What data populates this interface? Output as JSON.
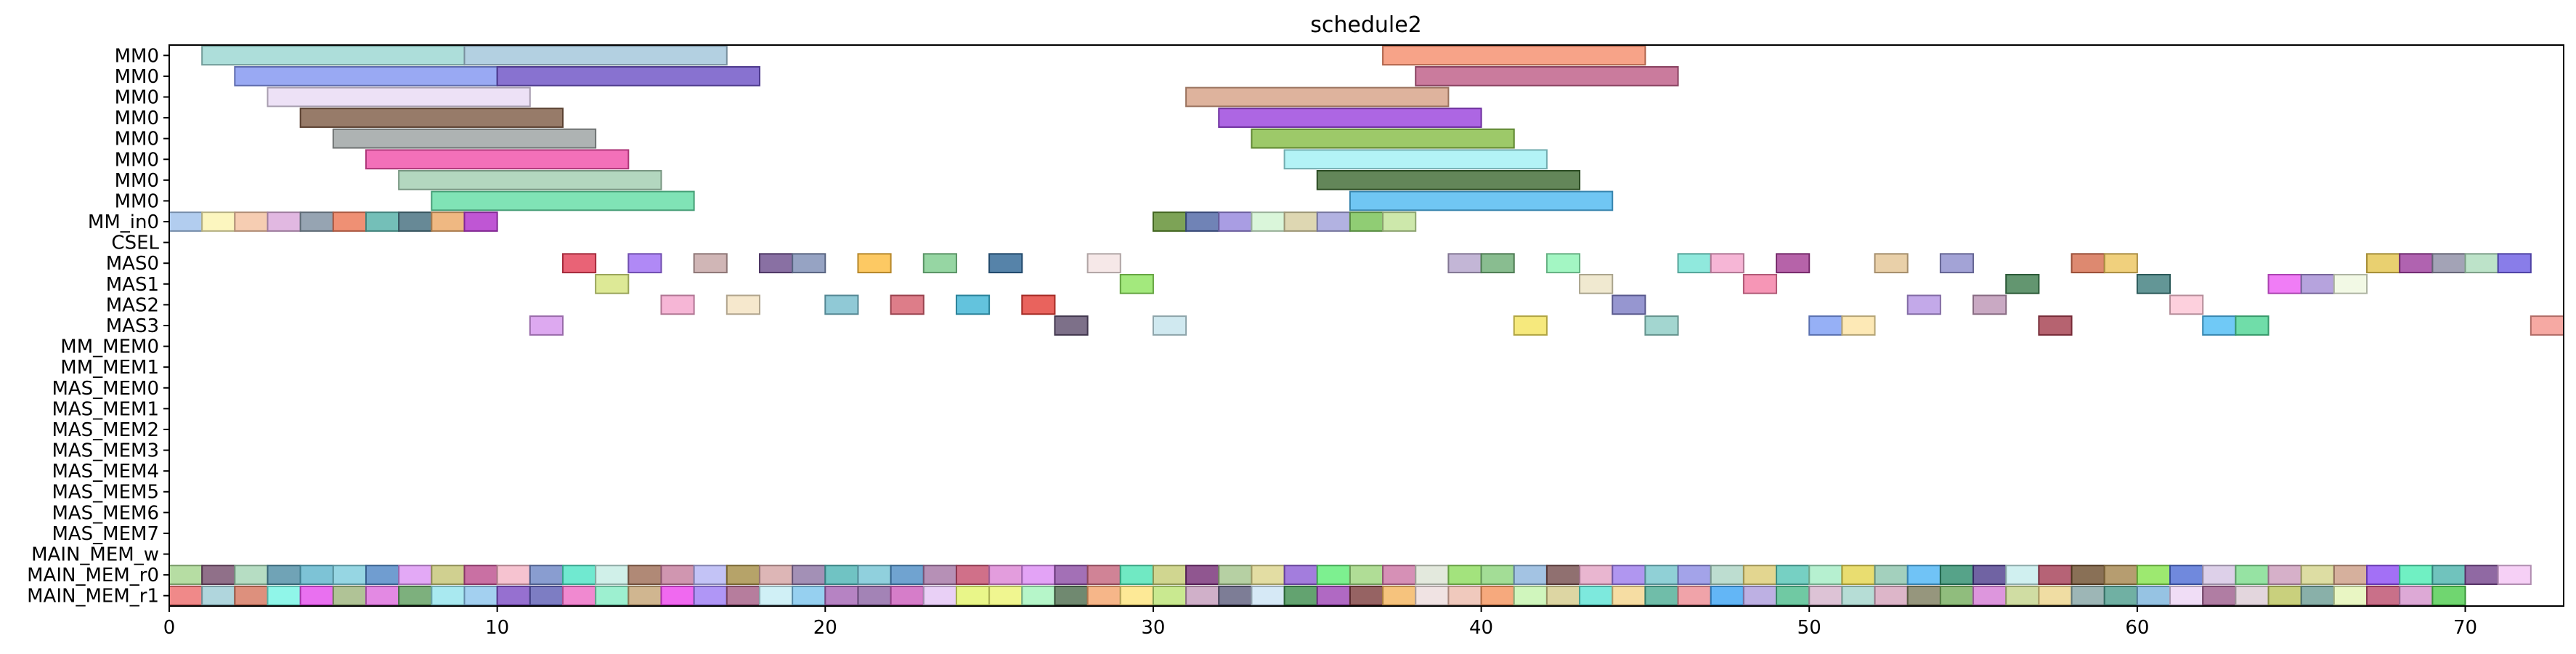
{
  "chart_data": {
    "type": "gantt",
    "title": "schedule2",
    "xlabel": "",
    "ylabel": "",
    "xlim": [
      0,
      73
    ],
    "x_ticks": [
      0,
      10,
      20,
      30,
      40,
      50,
      60,
      70
    ],
    "grid": false,
    "legend": "none",
    "rows": [
      "MM0",
      "MM0",
      "MM0",
      "MM0",
      "MM0",
      "MM0",
      "MM0",
      "MM0",
      "MM_in0",
      "CSEL",
      "MAS0",
      "MAS1",
      "MAS2",
      "MAS3",
      "MM_MEM0",
      "MM_MEM1",
      "MAS_MEM0",
      "MAS_MEM1",
      "MAS_MEM2",
      "MAS_MEM3",
      "MAS_MEM4",
      "MAS_MEM5",
      "MAS_MEM6",
      "MAS_MEM7",
      "MAIN_MEM_w",
      "MAIN_MEM_r0",
      "MAIN_MEM_r1"
    ],
    "tasks": [
      {
        "row": 0,
        "start": 1,
        "end": 9,
        "color": "#9fd8d4",
        "alpha": 0.85
      },
      {
        "row": 0,
        "start": 9,
        "end": 17,
        "color": "#a6c8dc",
        "alpha": 0.85
      },
      {
        "row": 0,
        "start": 37,
        "end": 45,
        "color": "#f58c6a",
        "alpha": 0.8
      },
      {
        "row": 1,
        "start": 2,
        "end": 10,
        "color": "#8093f0",
        "alpha": 0.8
      },
      {
        "row": 1,
        "start": 10,
        "end": 18,
        "color": "#6a4fc4",
        "alpha": 0.8
      },
      {
        "row": 1,
        "start": 38,
        "end": 46,
        "color": "#bd5a84",
        "alpha": 0.8
      },
      {
        "row": 2,
        "start": 3,
        "end": 11,
        "color": "#eadcf4",
        "alpha": 0.85
      },
      {
        "row": 2,
        "start": 31,
        "end": 39,
        "color": "#d6a084",
        "alpha": 0.8
      },
      {
        "row": 3,
        "start": 4,
        "end": 12,
        "color": "#7d5a44",
        "alpha": 0.8
      },
      {
        "row": 3,
        "start": 32,
        "end": 40,
        "color": "#9840dc",
        "alpha": 0.8
      },
      {
        "row": 4,
        "start": 5,
        "end": 13,
        "color": "#9aa0a0",
        "alpha": 0.8
      },
      {
        "row": 4,
        "start": 33,
        "end": 41,
        "color": "#84bc44",
        "alpha": 0.8
      },
      {
        "row": 5,
        "start": 6,
        "end": 14,
        "color": "#f04ca8",
        "alpha": 0.8
      },
      {
        "row": 5,
        "start": 34,
        "end": 42,
        "color": "#a0f0f4",
        "alpha": 0.8
      },
      {
        "row": 6,
        "start": 7,
        "end": 15,
        "color": "#a6d0b4",
        "alpha": 0.85
      },
      {
        "row": 6,
        "start": 35,
        "end": 43,
        "color": "#3c6830",
        "alpha": 0.8
      },
      {
        "row": 7,
        "start": 8,
        "end": 16,
        "color": "#60dca4",
        "alpha": 0.8
      },
      {
        "row": 7,
        "start": 36,
        "end": 44,
        "color": "#4cb8f0",
        "alpha": 0.8
      },
      {
        "row": 8,
        "start": 0,
        "end": 1,
        "color": "#a4c4ec",
        "alpha": 0.85
      },
      {
        "row": 8,
        "start": 1,
        "end": 2,
        "color": "#fcf4b4",
        "alpha": 0.85
      },
      {
        "row": 8,
        "start": 2,
        "end": 3,
        "color": "#f4c4a4",
        "alpha": 0.85
      },
      {
        "row": 8,
        "start": 3,
        "end": 4,
        "color": "#dcacdc",
        "alpha": 0.85
      },
      {
        "row": 8,
        "start": 4,
        "end": 5,
        "color": "#8494a4",
        "alpha": 0.85
      },
      {
        "row": 8,
        "start": 5,
        "end": 6,
        "color": "#ec7c5c",
        "alpha": 0.85
      },
      {
        "row": 8,
        "start": 6,
        "end": 7,
        "color": "#5cb4ac",
        "alpha": 0.85
      },
      {
        "row": 8,
        "start": 7,
        "end": 8,
        "color": "#4c7484",
        "alpha": 0.85
      },
      {
        "row": 8,
        "start": 8,
        "end": 9,
        "color": "#ecac6c",
        "alpha": 0.85
      },
      {
        "row": 8,
        "start": 9,
        "end": 10,
        "color": "#b438cc",
        "alpha": 0.85
      },
      {
        "row": 8,
        "start": 30,
        "end": 31,
        "color": "#5c8c2c",
        "alpha": 0.8
      },
      {
        "row": 8,
        "start": 31,
        "end": 32,
        "color": "#4c64a4",
        "alpha": 0.8
      },
      {
        "row": 8,
        "start": 32,
        "end": 33,
        "color": "#9484dc",
        "alpha": 0.8
      },
      {
        "row": 8,
        "start": 33,
        "end": 34,
        "color": "#d4f4d4",
        "alpha": 0.85
      },
      {
        "row": 8,
        "start": 34,
        "end": 35,
        "color": "#d8d0a4",
        "alpha": 0.85
      },
      {
        "row": 8,
        "start": 35,
        "end": 36,
        "color": "#a4a4dc",
        "alpha": 0.85
      },
      {
        "row": 8,
        "start": 36,
        "end": 37,
        "color": "#7cc45c",
        "alpha": 0.85
      },
      {
        "row": 8,
        "start": 37,
        "end": 38,
        "color": "#c4e49c",
        "alpha": 0.85
      },
      {
        "row": 10,
        "start": 12,
        "end": 13,
        "color": "#e43c54",
        "alpha": 0.8
      },
      {
        "row": 10,
        "start": 14,
        "end": 15,
        "color": "#9c6cf4",
        "alpha": 0.8
      },
      {
        "row": 10,
        "start": 16,
        "end": 17,
        "color": "#c4a4a4",
        "alpha": 0.8
      },
      {
        "row": 10,
        "start": 18,
        "end": 19,
        "color": "#6c4c8c",
        "alpha": 0.8
      },
      {
        "row": 10,
        "start": 19,
        "end": 20,
        "color": "#7c8cb4",
        "alpha": 0.8
      },
      {
        "row": 10,
        "start": 21,
        "end": 22,
        "color": "#fcbc3c",
        "alpha": 0.8
      },
      {
        "row": 10,
        "start": 23,
        "end": 24,
        "color": "#7ccc8c",
        "alpha": 0.8
      },
      {
        "row": 10,
        "start": 25,
        "end": 26,
        "color": "#2c6494",
        "alpha": 0.8
      },
      {
        "row": 10,
        "start": 28,
        "end": 29,
        "color": "#f4e4e4",
        "alpha": 0.85
      },
      {
        "row": 10,
        "start": 39,
        "end": 40,
        "color": "#b4a4cc",
        "alpha": 0.8
      },
      {
        "row": 10,
        "start": 40,
        "end": 41,
        "color": "#6cac74",
        "alpha": 0.8
      },
      {
        "row": 10,
        "start": 42,
        "end": 43,
        "color": "#8cf4b4",
        "alpha": 0.8
      },
      {
        "row": 10,
        "start": 46,
        "end": 47,
        "color": "#74e4d4",
        "alpha": 0.8
      },
      {
        "row": 10,
        "start": 47,
        "end": 48,
        "color": "#f4a4cc",
        "alpha": 0.8
      },
      {
        "row": 10,
        "start": 49,
        "end": 50,
        "color": "#a43c94",
        "alpha": 0.8
      },
      {
        "row": 10,
        "start": 52,
        "end": 53,
        "color": "#e4c494",
        "alpha": 0.8
      },
      {
        "row": 10,
        "start": 54,
        "end": 55,
        "color": "#8c8ccc",
        "alpha": 0.8
      },
      {
        "row": 10,
        "start": 58,
        "end": 59,
        "color": "#d46c4c",
        "alpha": 0.8
      },
      {
        "row": 10,
        "start": 59,
        "end": 60,
        "color": "#ecc45c",
        "alpha": 0.8
      },
      {
        "row": 10,
        "start": 67,
        "end": 68,
        "color": "#e4c44c",
        "alpha": 0.8
      },
      {
        "row": 10,
        "start": 68,
        "end": 69,
        "color": "#9c3c9c",
        "alpha": 0.8
      },
      {
        "row": 10,
        "start": 69,
        "end": 70,
        "color": "#8c8ca4",
        "alpha": 0.8
      },
      {
        "row": 10,
        "start": 70,
        "end": 71,
        "color": "#acdcbc",
        "alpha": 0.8
      },
      {
        "row": 10,
        "start": 71,
        "end": 72,
        "color": "#6c5ce4",
        "alpha": 0.8
      },
      {
        "row": 11,
        "start": 13,
        "end": 14,
        "color": "#d4e47c",
        "alpha": 0.8
      },
      {
        "row": 11,
        "start": 29,
        "end": 30,
        "color": "#8ce45c",
        "alpha": 0.8
      },
      {
        "row": 11,
        "start": 43,
        "end": 44,
        "color": "#ece4c4",
        "alpha": 0.8
      },
      {
        "row": 11,
        "start": 48,
        "end": 49,
        "color": "#f47ca4",
        "alpha": 0.8
      },
      {
        "row": 11,
        "start": 56,
        "end": 57,
        "color": "#3c7c4c",
        "alpha": 0.8
      },
      {
        "row": 11,
        "start": 60,
        "end": 61,
        "color": "#3c7c7c",
        "alpha": 0.8
      },
      {
        "row": 11,
        "start": 64,
        "end": 65,
        "color": "#ec5cf4",
        "alpha": 0.8
      },
      {
        "row": 11,
        "start": 65,
        "end": 66,
        "color": "#a48cd4",
        "alpha": 0.8
      },
      {
        "row": 11,
        "start": 66,
        "end": 67,
        "color": "#f0f8e0",
        "alpha": 0.85
      },
      {
        "row": 12,
        "start": 15,
        "end": 16,
        "color": "#f4a4cc",
        "alpha": 0.8
      },
      {
        "row": 12,
        "start": 17,
        "end": 18,
        "color": "#f4e4c4",
        "alpha": 0.85
      },
      {
        "row": 12,
        "start": 20,
        "end": 21,
        "color": "#74bccc",
        "alpha": 0.8
      },
      {
        "row": 12,
        "start": 22,
        "end": 23,
        "color": "#d45c6c",
        "alpha": 0.8
      },
      {
        "row": 12,
        "start": 24,
        "end": 25,
        "color": "#3cb4d4",
        "alpha": 0.8
      },
      {
        "row": 12,
        "start": 26,
        "end": 27,
        "color": "#e43c34",
        "alpha": 0.8
      },
      {
        "row": 12,
        "start": 44,
        "end": 45,
        "color": "#7c7cc4",
        "alpha": 0.8
      },
      {
        "row": 12,
        "start": 53,
        "end": 54,
        "color": "#b494e4",
        "alpha": 0.8
      },
      {
        "row": 12,
        "start": 55,
        "end": 56,
        "color": "#bc94b4",
        "alpha": 0.8
      },
      {
        "row": 12,
        "start": 61,
        "end": 62,
        "color": "#fcc4d4",
        "alpha": 0.8
      },
      {
        "row": 13,
        "start": 11,
        "end": 12,
        "color": "#d494ec",
        "alpha": 0.8
      },
      {
        "row": 13,
        "start": 27,
        "end": 28,
        "color": "#5c4c6c",
        "alpha": 0.8
      },
      {
        "row": 13,
        "start": 30,
        "end": 31,
        "color": "#c4e4ec",
        "alpha": 0.8
      },
      {
        "row": 13,
        "start": 41,
        "end": 42,
        "color": "#f4e45c",
        "alpha": 0.8
      },
      {
        "row": 13,
        "start": 45,
        "end": 46,
        "color": "#8cccc4",
        "alpha": 0.8
      },
      {
        "row": 13,
        "start": 50,
        "end": 51,
        "color": "#7c9cf4",
        "alpha": 0.8
      },
      {
        "row": 13,
        "start": 51,
        "end": 52,
        "color": "#fce4a4",
        "alpha": 0.8
      },
      {
        "row": 13,
        "start": 57,
        "end": 58,
        "color": "#a43c4c",
        "alpha": 0.8
      },
      {
        "row": 13,
        "start": 62,
        "end": 63,
        "color": "#4cbcf4",
        "alpha": 0.8
      },
      {
        "row": 13,
        "start": 63,
        "end": 64,
        "color": "#4cd494",
        "alpha": 0.8
      },
      {
        "row": 13,
        "start": 72,
        "end": 73,
        "color": "#f4948c",
        "alpha": 0.8
      }
    ],
    "mem_rows": [
      {
        "row": 25,
        "colors": [
          "#a4d48c",
          "#744c6c",
          "#a4d4b4",
          "#4c8ca4",
          "#5cb4cc",
          "#7cccdc",
          "#4c84c4",
          "#dc94f4",
          "#c4c474",
          "#bc4c8c",
          "#f4b4c4",
          "#6c84c4",
          "#4ce4c4",
          "#c4ece4",
          "#9c6c54",
          "#c47c9c",
          "#b4b4f4",
          "#a48c44",
          "#d4a4a4",
          "#8c74a4",
          "#4cb4b4",
          "#74c4d4",
          "#4c8cc4",
          "#a474a4",
          "#c44c6c",
          "#dc84d4",
          "#dc8cf4",
          "#8c4ca4",
          "#c4647c",
          "#4ce4b4",
          "#c4cc74",
          "#742c74",
          "#a4c48c",
          "#dcd48c",
          "#8c5cd4",
          "#5cec74",
          "#9cd47c",
          "#cc74a4",
          "#dce4d4",
          "#8cdc5c",
          "#8cd47c",
          "#8cb4dc",
          "#744c4c",
          "#e4a4c4",
          "#9c7cec",
          "#74c4cc",
          "#8c8ce4",
          "#acd4c4",
          "#dccc74",
          "#54c4b4",
          "#a4ecc4",
          "#e4d44c",
          "#8cc4ac",
          "#4cb4f4",
          "#2c8c6c",
          "#4c3c8c",
          "#c4ecec",
          "#a43c54",
          "#6c4c2c",
          "#a4844c",
          "#84e44c",
          "#4c6cd4",
          "#d4c4e4",
          "#7cdc8c",
          "#cc9cbc",
          "#d4d48c",
          "#cc9c84",
          "#8c4cf4",
          "#4cecb4",
          "#4cb4ac",
          "#74448c",
          "#f4c4f4"
        ]
      },
      {
        "row": 26,
        "colors": [
          "#ec6c6c",
          "#9cccd4",
          "#d4745c",
          "#74f4e4",
          "#e44cec",
          "#9cb47c",
          "#dc6cdc",
          "#5c9c5c",
          "#94e4ec",
          "#8cc4ec",
          "#7c4cc4",
          "#5c5cb4",
          "#ec6cc4",
          "#84ecc4",
          "#c4a474",
          "#ec44ec",
          "#9c7cf4",
          "#a45c84",
          "#c4ecf4",
          "#7cc4ec",
          "#a464b4",
          "#8c64a4",
          "#cc5cbc",
          "#e4c4f4",
          "#e4f46c",
          "#ecf474",
          "#a4f4bc",
          "#4c6c4c",
          "#f4a46c",
          "#fce47c",
          "#bce474",
          "#c49cbc",
          "#5c5c7c",
          "#cce4f4",
          "#3c8c4c",
          "#9c44b4",
          "#7c3c3c",
          "#f4b45c",
          "#ecdcdc",
          "#ecbcac",
          "#f4945c",
          "#c4f4ac",
          "#d4cc8c",
          "#5ce4d4",
          "#f4d48c",
          "#4cac94",
          "#ec8c94",
          "#3ca4f4",
          "#ac9cdc",
          "#4cbc8c",
          "#d4b4cc",
          "#a4d4cc",
          "#d4a4bc",
          "#7c7c5c",
          "#74ac5c",
          "#d47cd4",
          "#c4d48c",
          "#ecd48c",
          "#84a4a4",
          "#4c9c8c",
          "#7cb4dc",
          "#ecd4f4",
          "#9c5c8c",
          "#dcccd4",
          "#bcc45c",
          "#6c9c94",
          "#e4f4b4",
          "#bc4c6c",
          "#d494cc",
          "#4ccc4c"
        ]
      }
    ]
  }
}
